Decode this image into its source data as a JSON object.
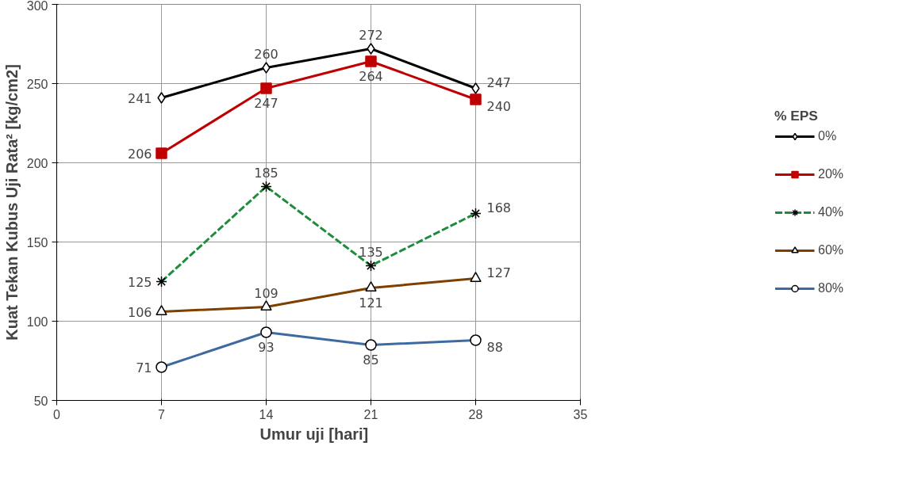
{
  "chart_data": {
    "type": "line",
    "xlabel": "Umur uji   [hari]",
    "ylabel": "Kuat Tekan Kubus Uji Rata² [kg/cm2]",
    "legend_title": "% EPS",
    "x": [
      7,
      14,
      21,
      28
    ],
    "series": [
      {
        "name": "0%",
        "color": "#000000",
        "values": [
          241,
          260,
          272,
          247
        ],
        "marker": "diamond",
        "line_style": "solid"
      },
      {
        "name": "20%",
        "color": "#c00000",
        "values": [
          206,
          247,
          264,
          240
        ],
        "marker": "square",
        "line_style": "solid"
      },
      {
        "name": "40%",
        "color": "#1e8c3a",
        "values": [
          125,
          185,
          135,
          168
        ],
        "marker": "cross",
        "line_style": "dashed"
      },
      {
        "name": "60%",
        "color": "#7f3f00",
        "values": [
          106,
          109,
          121,
          127
        ],
        "marker": "triangle",
        "line_style": "solid"
      },
      {
        "name": "80%",
        "color": "#3d6aa0",
        "values": [
          71,
          93,
          85,
          88
        ],
        "marker": "circle",
        "line_style": "solid"
      }
    ],
    "xlim": [
      0,
      35
    ],
    "xticks": [
      0,
      7,
      14,
      21,
      28,
      35
    ],
    "ylim": [
      50,
      300
    ],
    "yticks": [
      50,
      100,
      150,
      200,
      250,
      300
    ],
    "grid": true,
    "legend": "right",
    "data_labels": true
  }
}
